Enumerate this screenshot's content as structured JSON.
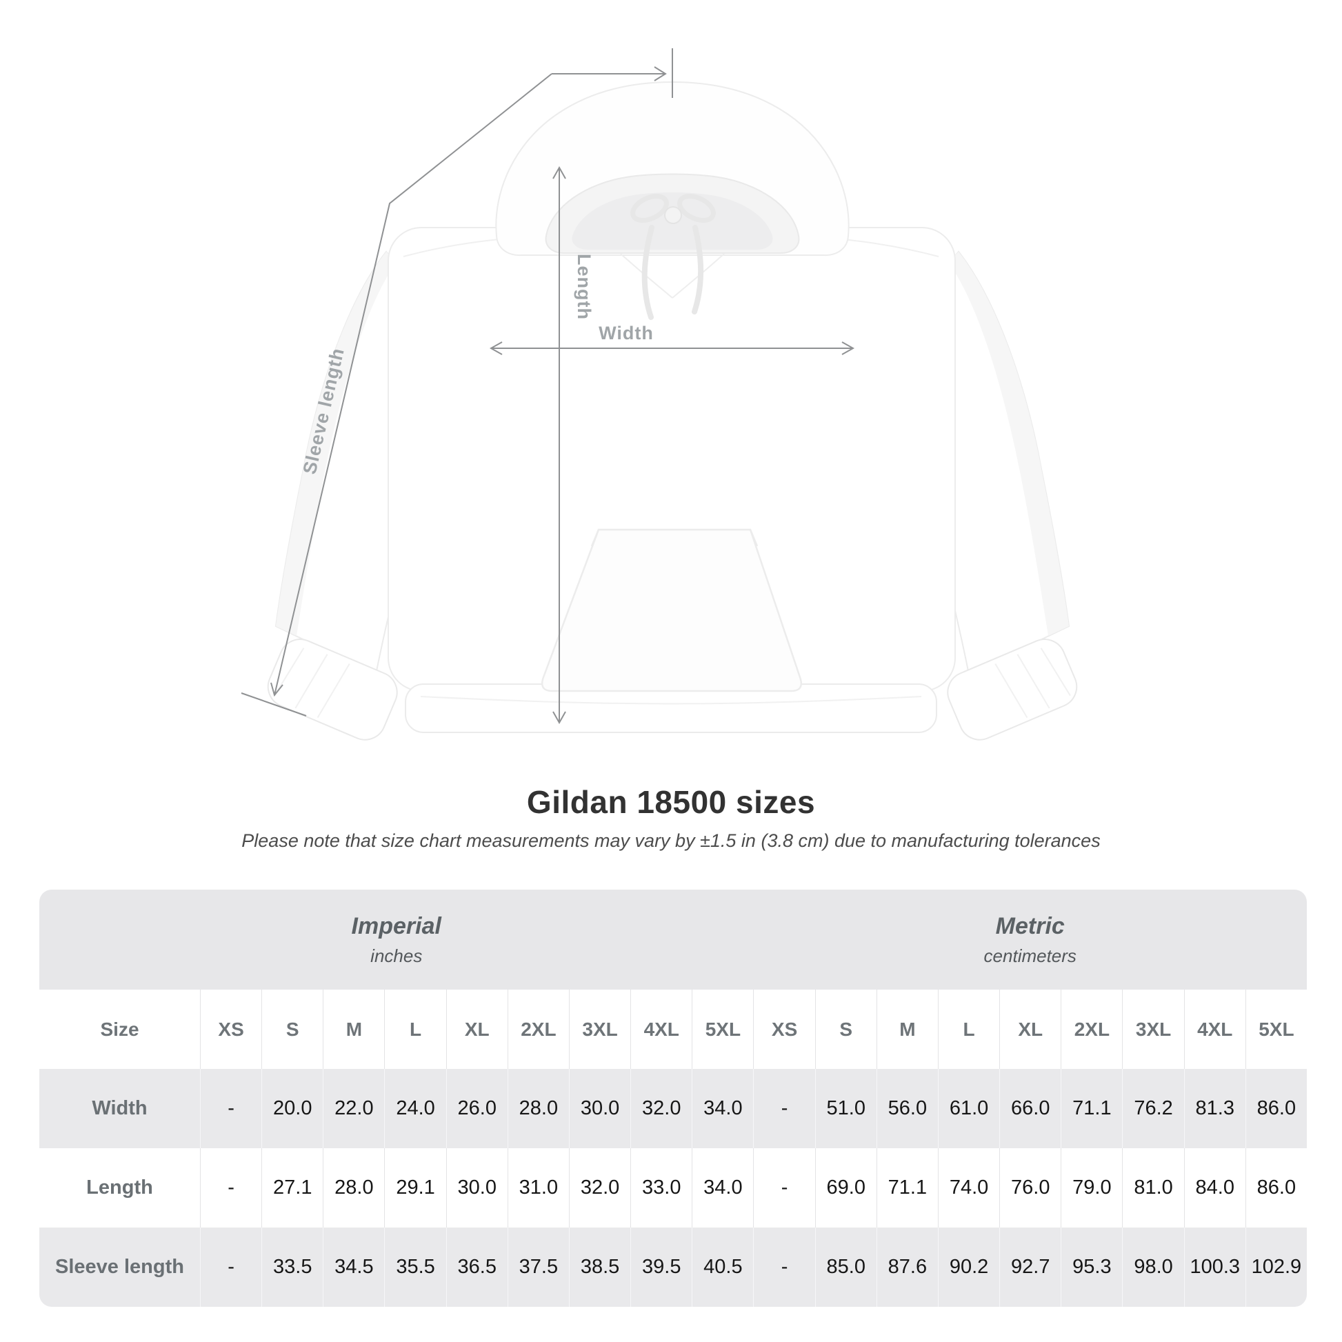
{
  "figure": {
    "labels": {
      "length": "Length",
      "width": "Width",
      "sleeve": "Sleeve length"
    }
  },
  "title": "Gildan 18500 sizes",
  "subtitle": "Please note that size chart measurements may vary by ±1.5 in (3.8 cm) due to manufacturing tolerances",
  "chart_data": {
    "type": "table",
    "size_header": "Size",
    "sizes": [
      "XS",
      "S",
      "M",
      "L",
      "XL",
      "2XL",
      "3XL",
      "4XL",
      "5XL"
    ],
    "unit_groups": [
      {
        "label": "Imperial",
        "sublabel": "inches"
      },
      {
        "label": "Metric",
        "sublabel": "centimeters"
      }
    ],
    "rows": [
      {
        "label": "Width",
        "imperial": [
          "-",
          "20.0",
          "22.0",
          "24.0",
          "26.0",
          "28.0",
          "30.0",
          "32.0",
          "34.0"
        ],
        "metric": [
          "-",
          "51.0",
          "56.0",
          "61.0",
          "66.0",
          "71.1",
          "76.2",
          "81.3",
          "86.0"
        ]
      },
      {
        "label": "Length",
        "imperial": [
          "-",
          "27.1",
          "28.0",
          "29.1",
          "30.0",
          "31.0",
          "32.0",
          "33.0",
          "34.0"
        ],
        "metric": [
          "-",
          "69.0",
          "71.1",
          "74.0",
          "76.0",
          "79.0",
          "81.0",
          "84.0",
          "86.0"
        ]
      },
      {
        "label": "Sleeve length",
        "imperial": [
          "-",
          "33.5",
          "34.5",
          "35.5",
          "36.5",
          "37.5",
          "38.5",
          "39.5",
          "40.5"
        ],
        "metric": [
          "-",
          "85.0",
          "87.6",
          "90.2",
          "92.7",
          "95.3",
          "98.0",
          "100.3",
          "102.9"
        ]
      }
    ]
  }
}
